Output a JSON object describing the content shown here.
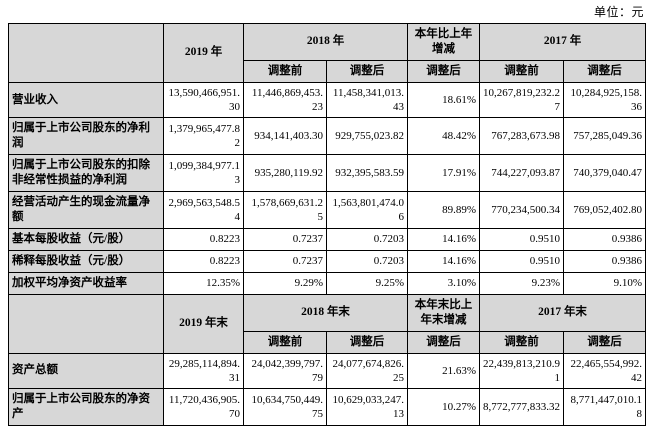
{
  "unit_label": "单位：元",
  "colors": {
    "header_bg": "#d7d7d7",
    "border": "#000000",
    "text": "#000000"
  },
  "table": {
    "sections": [
      {
        "top_headers": {
          "blank": "",
          "current": "2019 年",
          "prev": "2018 年",
          "change": "本年比上年增减",
          "prev2": "2017 年"
        },
        "sub_headers": [
          "调整前",
          "调整后",
          "调整后",
          "调整前",
          "调整后"
        ],
        "rows": [
          {
            "label": "营业收入",
            "values": [
              "13,590,466,951.30",
              "11,446,869,453.23",
              "11,458,341,013.43",
              "18.61%",
              "10,267,819,232.27",
              "10,284,925,158.36"
            ]
          },
          {
            "label": "归属于上市公司股东的净利润",
            "values": [
              "1,379,965,477.82",
              "934,141,403.30",
              "929,755,023.82",
              "48.42%",
              "767,283,673.98",
              "757,285,049.36"
            ]
          },
          {
            "label": "归属于上市公司股东的扣除非经常性损益的净利润",
            "values": [
              "1,099,384,977.13",
              "935,280,119.92",
              "932,395,583.59",
              "17.91%",
              "744,227,093.87",
              "740,379,040.47"
            ]
          },
          {
            "label": "经营活动产生的现金流量净额",
            "values": [
              "2,969,563,548.54",
              "1,578,669,631.25",
              "1,563,801,474.06",
              "89.89%",
              "770,234,500.34",
              "769,052,402.80"
            ]
          },
          {
            "label": "基本每股收益（元/股）",
            "values": [
              "0.8223",
              "0.7237",
              "0.7203",
              "14.16%",
              "0.9510",
              "0.9386"
            ]
          },
          {
            "label": "稀释每股收益（元/股）",
            "values": [
              "0.8223",
              "0.7237",
              "0.7203",
              "14.16%",
              "0.9510",
              "0.9386"
            ]
          },
          {
            "label": "加权平均净资产收益率",
            "values": [
              "12.35%",
              "9.29%",
              "9.25%",
              "3.10%",
              "9.23%",
              "9.10%"
            ]
          }
        ]
      },
      {
        "top_headers": {
          "blank": "",
          "current": "2019 年末",
          "prev": "2018 年末",
          "change": "本年末比上年末增减",
          "prev2": "2017 年末"
        },
        "sub_headers": [
          "调整前",
          "调整后",
          "调整后",
          "调整前",
          "调整后"
        ],
        "rows": [
          {
            "label": "资产总额",
            "values": [
              "29,285,114,894.31",
              "24,042,399,797.79",
              "24,077,674,826.25",
              "21.63%",
              "22,439,813,210.91",
              "22,465,554,992.42"
            ]
          },
          {
            "label": "归属于上市公司股东的净资产",
            "values": [
              "11,720,436,905.70",
              "10,634,750,449.75",
              "10,629,033,247.13",
              "10.27%",
              "8,772,777,833.32",
              "8,771,447,010.18"
            ]
          }
        ]
      }
    ]
  }
}
